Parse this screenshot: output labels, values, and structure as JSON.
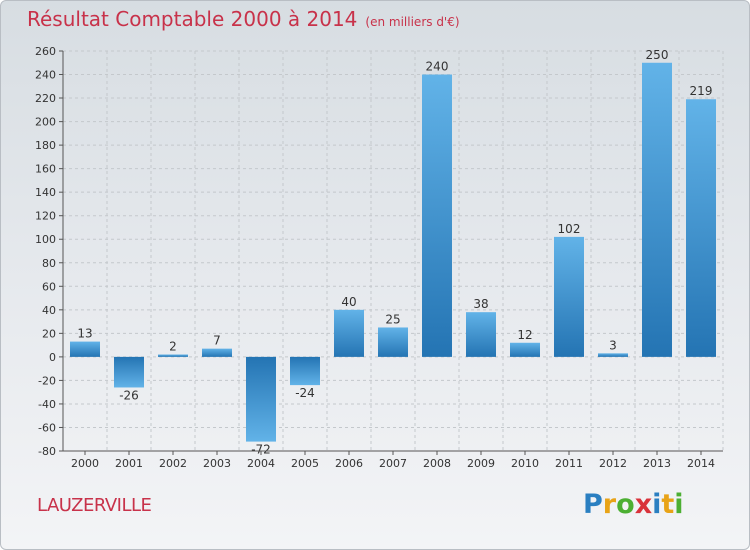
{
  "chart_data": {
    "type": "bar",
    "title": "Résultat Comptable 2000 à 2014",
    "subtitle": "(en milliers d'€)",
    "categories": [
      "2000",
      "2001",
      "2002",
      "2003",
      "2004",
      "2005",
      "2006",
      "2007",
      "2008",
      "2009",
      "2010",
      "2011",
      "2012",
      "2013",
      "2014"
    ],
    "values": [
      13,
      -26,
      2,
      7,
      -72,
      -24,
      40,
      25,
      240,
      38,
      12,
      102,
      3,
      250,
      219
    ],
    "ylim": [
      -80,
      260
    ],
    "ytick_step": 20,
    "yticks": [
      "-80",
      "-60",
      "-40",
      "-20",
      "0",
      "20",
      "40",
      "60",
      "80",
      "100",
      "120",
      "140",
      "160",
      "180",
      "200",
      "220",
      "240",
      "260"
    ],
    "grid": true,
    "xlabel": "",
    "ylabel": ""
  },
  "commune": "LAUZERVILLE",
  "logo": {
    "letters": [
      "P",
      "r",
      "o",
      "x",
      "i",
      "t",
      "i"
    ],
    "colors": [
      "#2a7fc1",
      "#e8a317",
      "#4caf32",
      "#d9323a",
      "#2a7fc1",
      "#e8a317",
      "#4caf32"
    ]
  },
  "colors": {
    "bar_light": "#5fb0e6",
    "bar_dark": "#1f6aa8",
    "title": "#c8324a"
  }
}
